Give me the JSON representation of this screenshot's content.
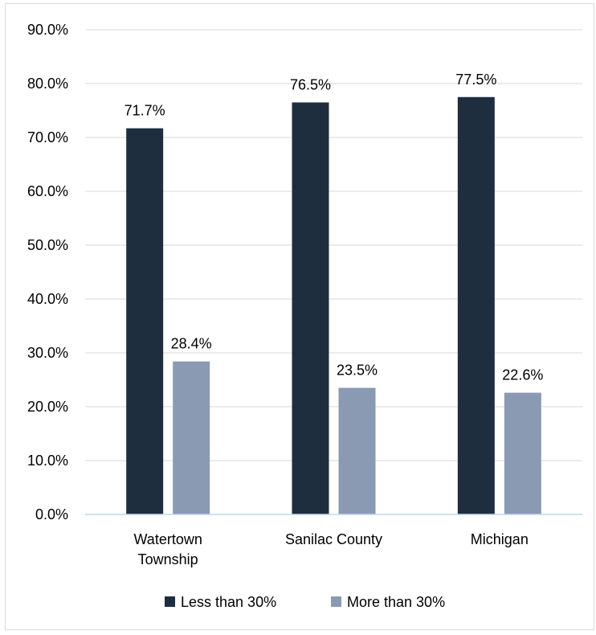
{
  "chart_data": {
    "type": "bar",
    "title": "",
    "xlabel": "",
    "ylabel": "",
    "categories": [
      [
        "Watertown",
        "Township"
      ],
      [
        "Sanilac County"
      ],
      [
        "Michigan"
      ]
    ],
    "series": [
      {
        "name": "Less than 30%",
        "color": "#1f2e3f",
        "values": [
          71.7,
          76.5,
          77.5
        ],
        "labels": [
          "71.7%",
          "76.5%",
          "77.5%"
        ]
      },
      {
        "name": "More than 30%",
        "color": "#8a9ab2",
        "values": [
          28.4,
          23.5,
          22.6
        ],
        "labels": [
          "28.4%",
          "23.5%",
          "22.6%"
        ]
      }
    ],
    "ylim": [
      0,
      90
    ],
    "yticks": [
      0,
      10,
      20,
      30,
      40,
      50,
      60,
      70,
      80,
      90
    ],
    "ytick_labels": [
      "0.0%",
      "10.0%",
      "20.0%",
      "30.0%",
      "40.0%",
      "50.0%",
      "60.0%",
      "70.0%",
      "80.0%",
      "90.0%"
    ],
    "grid": true,
    "gridline_color": "#d9d9d9",
    "axis_color": "#bdd7ee",
    "legend_position": "bottom"
  }
}
